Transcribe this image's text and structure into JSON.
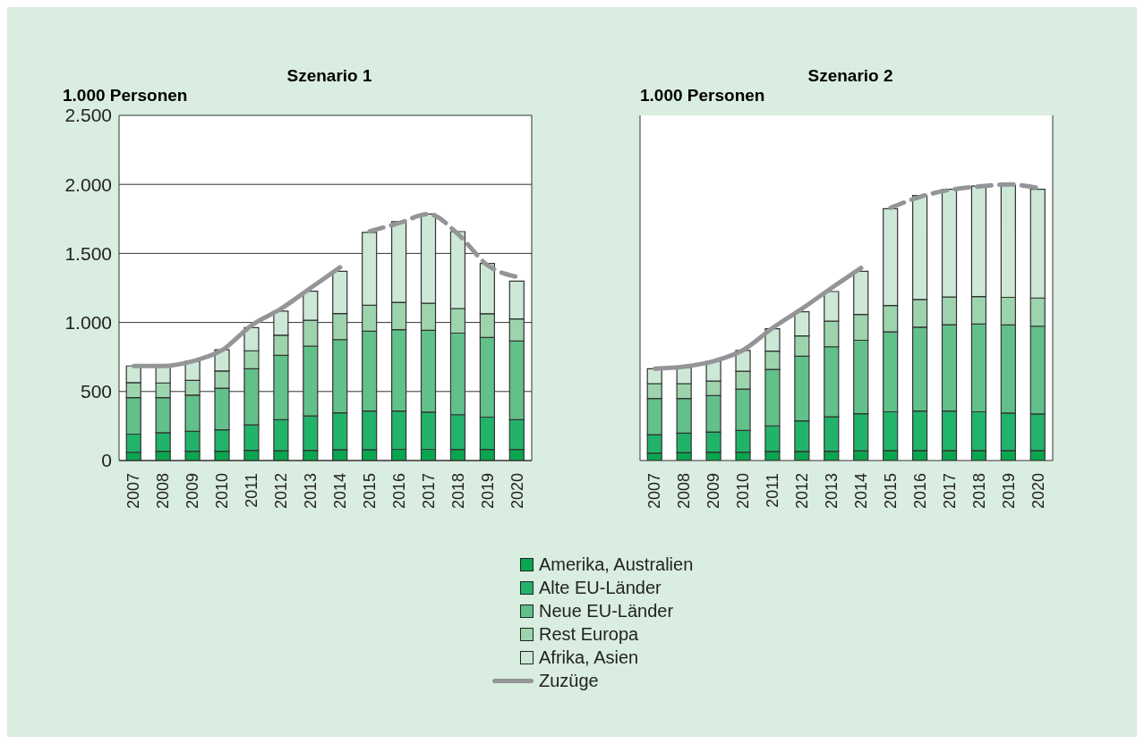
{
  "chart_data": [
    {
      "type": "bar",
      "title": "Szenario 1",
      "ylabel": "1.000 Personen",
      "stacked": true,
      "grid": "y",
      "legend": "bottom",
      "categories": [
        "2007",
        "2008",
        "2009",
        "2010",
        "2011",
        "2012",
        "2013",
        "2014",
        "2015",
        "2016",
        "2017",
        "2018",
        "2019",
        "2020"
      ],
      "ylim": [
        0,
        2500
      ],
      "yticks": [
        0,
        500,
        {
          "value": 1000,
          "label": "1.000"
        },
        {
          "value": 1500,
          "label": "1.500"
        },
        {
          "value": 2000,
          "label": "2.000"
        },
        {
          "value": 2500,
          "label": "2.500"
        }
      ],
      "series": [
        {
          "name": "Amerika, Australien",
          "color": "#0aa64f",
          "values": [
            60,
            67,
            67,
            67,
            74,
            70,
            74,
            78,
            79,
            81,
            81,
            80,
            80,
            80
          ]
        },
        {
          "name": "Alte EU-Länder",
          "color": "#22b36b",
          "values": [
            131,
            135,
            144,
            155,
            184,
            226,
            249,
            268,
            280,
            278,
            269,
            252,
            234,
            216
          ]
        },
        {
          "name": "Neue EU-Länder",
          "color": "#62c08b",
          "values": [
            265,
            254,
            263,
            302,
            407,
            466,
            506,
            530,
            578,
            589,
            593,
            591,
            578,
            569
          ]
        },
        {
          "name": "Rest Europa",
          "color": "#9dd4ae",
          "values": [
            108,
            106,
            107,
            125,
            130,
            146,
            187,
            189,
            188,
            198,
            196,
            178,
            171,
            161
          ]
        },
        {
          "name": "Afrika, Asien",
          "color": "#cde8d6",
          "values": [
            121,
            118,
            138,
            153,
            167,
            175,
            211,
            305,
            528,
            584,
            646,
            557,
            364,
            274
          ]
        },
        {
          "name": "Zuzüge",
          "type": "line",
          "color": "#939598",
          "line_style": "solid",
          "values": [
            685,
            685,
            720,
            800,
            980,
            1100,
            1250,
            1400,
            null,
            null,
            null,
            null,
            null,
            null
          ]
        },
        {
          "type": "line",
          "color": "#939598",
          "line_style": "dashed",
          "values": [
            null,
            null,
            null,
            null,
            null,
            null,
            null,
            null,
            1660,
            1720,
            1785,
            1640,
            1415,
            1330
          ]
        }
      ]
    },
    {
      "type": "bar",
      "title": "Szenario 2",
      "ylabel": "1.000 Personen",
      "stacked": true,
      "grid": "y",
      "tick_labels": "x",
      "categories": [
        "2007",
        "2008",
        "2009",
        "2010",
        "2011",
        "2012",
        "2013",
        "2014",
        "2015",
        "2016",
        "2017",
        "2018",
        "2019",
        "2020"
      ],
      "ylim": [
        0,
        2500
      ],
      "yticks": [
        0,
        500,
        1000,
        1500,
        2000,
        2500
      ],
      "series": [
        {
          "color": "#0aa64f",
          "values": [
            54,
            58,
            61,
            61,
            65,
            65,
            67,
            70,
            72,
            72,
            72,
            72,
            72,
            72
          ]
        },
        {
          "color": "#22b36b",
          "values": [
            133,
            140,
            146,
            157,
            186,
            223,
            250,
            269,
            281,
            287,
            287,
            281,
            272,
            265
          ]
        },
        {
          "color": "#62c08b",
          "values": [
            262,
            251,
            263,
            299,
            409,
            467,
            507,
            532,
            579,
            607,
            625,
            635,
            638,
            636
          ]
        },
        {
          "color": "#9dd4ae",
          "values": [
            108,
            108,
            105,
            130,
            133,
            148,
            185,
            187,
            191,
            200,
            200,
            200,
            200,
            204
          ]
        },
        {
          "color": "#cde8d6",
          "values": [
            108,
            117,
            144,
            150,
            162,
            175,
            215,
            312,
            701,
            754,
            781,
            800,
            813,
            788
          ]
        },
        {
          "type": "line",
          "color": "#939598",
          "line_style": "solid",
          "values": [
            665,
            680,
            720,
            800,
            960,
            1100,
            1250,
            1395,
            null,
            null,
            null,
            null,
            null,
            null
          ]
        },
        {
          "type": "line",
          "color": "#939598",
          "line_style": "dashed",
          "values": [
            null,
            null,
            null,
            null,
            null,
            null,
            null,
            null,
            1830,
            1910,
            1960,
            1985,
            2000,
            1975
          ]
        }
      ]
    }
  ]
}
